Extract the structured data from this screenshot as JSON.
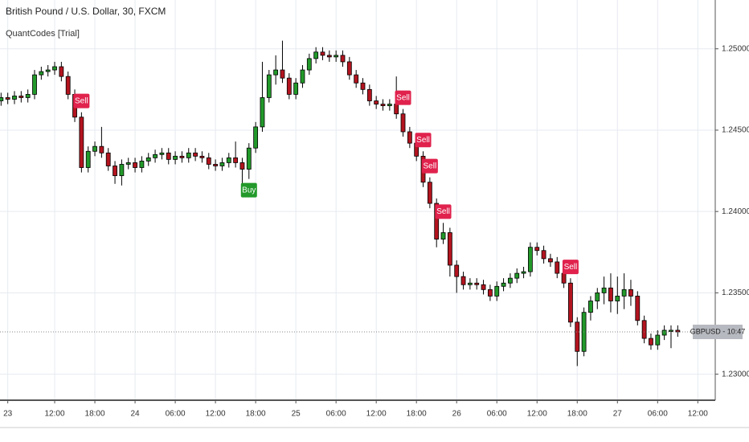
{
  "chart_data": {
    "type": "candlestick",
    "title": "British Pound / U.S. Dollar, 30, FXCM",
    "subtitle": "QuantCodes [Trial]",
    "x": [
      4,
      5,
      6,
      7,
      8,
      9,
      10,
      11,
      12,
      13,
      14,
      15,
      16,
      17,
      18,
      19,
      20,
      21,
      22,
      23,
      24,
      25,
      26,
      27,
      28,
      29,
      30,
      31,
      32,
      33,
      34,
      35,
      36,
      37,
      38,
      39,
      40,
      41,
      42,
      43,
      44,
      45,
      46,
      47,
      48,
      49,
      50,
      51,
      52,
      53,
      54,
      55,
      56,
      57,
      58,
      59,
      60,
      61,
      62,
      63,
      64,
      65,
      66,
      67,
      68,
      69,
      70,
      71,
      72,
      73,
      74,
      75,
      76,
      77,
      78,
      79,
      80,
      81,
      82,
      83,
      84,
      85,
      86,
      87,
      88,
      89,
      90,
      91,
      92,
      93,
      94,
      95,
      96,
      97,
      98,
      99,
      100,
      101,
      102,
      103,
      104,
      105
    ],
    "open": [
      1.2468,
      1.247,
      1.2469,
      1.2471,
      1.247,
      1.2472,
      1.2484,
      1.2486,
      1.2487,
      1.2489,
      1.2483,
      1.2472,
      1.2458,
      1.2427,
      1.2437,
      1.244,
      1.2436,
      1.2428,
      1.2422,
      1.2429,
      1.243,
      1.2427,
      1.2431,
      1.2433,
      1.2435,
      1.2436,
      1.2432,
      1.2434,
      1.2433,
      1.2436,
      1.2434,
      1.2433,
      1.2429,
      1.2428,
      1.243,
      1.2433,
      1.243,
      1.2426,
      1.2439,
      1.2452,
      1.247,
      1.2484,
      1.2487,
      1.2482,
      1.2472,
      1.2479,
      1.2487,
      1.2494,
      1.2498,
      1.2496,
      1.2495,
      1.2496,
      1.2492,
      1.2484,
      1.2479,
      1.2475,
      1.2468,
      1.2466,
      1.2465,
      1.2466,
      1.246,
      1.2449,
      1.2442,
      1.2434,
      1.2418,
      1.2405,
      1.2383,
      1.2387,
      1.2367,
      1.236,
      1.2355,
      1.2356,
      1.2355,
      1.2352,
      1.2348,
      1.2354,
      1.2356,
      1.2359,
      1.2362,
      1.2363,
      1.2378,
      1.2376,
      1.2371,
      1.2369,
      1.2362,
      1.2356,
      1.2332,
      1.2314,
      1.2338,
      1.2345,
      1.235,
      1.2353,
      1.2345,
      1.2348,
      1.2352,
      1.2348,
      1.2333,
      1.2322,
      1.2318,
      1.2324,
      1.2327,
      1.2327
    ],
    "high": [
      1.2473,
      1.2473,
      1.2474,
      1.2474,
      1.2475,
      1.2487,
      1.2489,
      1.249,
      1.2492,
      1.2492,
      1.2486,
      1.2475,
      1.2461,
      1.244,
      1.2443,
      1.2452,
      1.2439,
      1.2431,
      1.2432,
      1.2433,
      1.2433,
      1.2434,
      1.2436,
      1.2438,
      1.2439,
      1.2439,
      1.2437,
      1.2437,
      1.2439,
      1.2439,
      1.2437,
      1.2436,
      1.2432,
      1.2433,
      1.2436,
      1.2443,
      1.2433,
      1.2442,
      1.2455,
      1.2492,
      1.2487,
      1.2496,
      1.2505,
      1.2485,
      1.2482,
      1.249,
      1.2497,
      1.2501,
      1.2501,
      1.2499,
      1.2499,
      1.2499,
      1.2495,
      1.2487,
      1.2482,
      1.2478,
      1.2471,
      1.2469,
      1.2469,
      1.2483,
      1.2463,
      1.2452,
      1.2445,
      1.2437,
      1.2421,
      1.2408,
      1.2393,
      1.239,
      1.237,
      1.2363,
      1.2359,
      1.2359,
      1.2358,
      1.2355,
      1.2357,
      1.2359,
      1.2362,
      1.2365,
      1.2366,
      1.2381,
      1.2381,
      1.2379,
      1.2374,
      1.2372,
      1.2365,
      1.2359,
      1.2335,
      1.2341,
      1.2348,
      1.2353,
      1.236,
      1.2362,
      1.236,
      1.2362,
      1.2358,
      1.2351,
      1.2336,
      1.2325,
      1.2327,
      1.233,
      1.233,
      1.233
    ],
    "low": [
      1.2465,
      1.2466,
      1.2466,
      1.2467,
      1.2467,
      1.2469,
      1.2481,
      1.2483,
      1.2484,
      1.248,
      1.2469,
      1.2455,
      1.2424,
      1.2424,
      1.2434,
      1.2433,
      1.2425,
      1.2417,
      1.2416,
      1.2426,
      1.2424,
      1.2424,
      1.2428,
      1.243,
      1.2432,
      1.2429,
      1.2429,
      1.243,
      1.243,
      1.2431,
      1.243,
      1.2426,
      1.2425,
      1.2425,
      1.2427,
      1.2427,
      1.2416,
      1.242,
      1.2436,
      1.2449,
      1.2467,
      1.2478,
      1.2479,
      1.2469,
      1.2469,
      1.2476,
      1.2484,
      1.2491,
      1.2493,
      1.2492,
      1.2492,
      1.2489,
      1.2481,
      1.2476,
      1.2472,
      1.2465,
      1.2463,
      1.2462,
      1.2462,
      1.2457,
      1.2446,
      1.2439,
      1.2431,
      1.2415,
      1.2402,
      1.2378,
      1.238,
      1.236,
      1.235,
      1.2352,
      1.2352,
      1.2352,
      1.2349,
      1.2345,
      1.2345,
      1.2351,
      1.2353,
      1.2356,
      1.2359,
      1.236,
      1.2373,
      1.2368,
      1.2366,
      1.2359,
      1.2353,
      1.2329,
      1.2305,
      1.2311,
      1.2333,
      1.234,
      1.2343,
      1.2338,
      1.2337,
      1.234,
      1.2342,
      1.233,
      1.2319,
      1.2315,
      1.2315,
      1.2321,
      1.2316,
      1.2323
    ],
    "close": [
      1.247,
      1.2469,
      1.2471,
      1.247,
      1.2472,
      1.2484,
      1.2486,
      1.2487,
      1.2489,
      1.2483,
      1.2472,
      1.2458,
      1.2427,
      1.2437,
      1.244,
      1.2436,
      1.2428,
      1.2422,
      1.2429,
      1.243,
      1.2427,
      1.2431,
      1.2433,
      1.2435,
      1.2436,
      1.2432,
      1.2434,
      1.2433,
      1.2436,
      1.2434,
      1.2433,
      1.2429,
      1.2428,
      1.243,
      1.2433,
      1.243,
      1.2426,
      1.2439,
      1.2452,
      1.247,
      1.2484,
      1.2487,
      1.2482,
      1.2472,
      1.2479,
      1.2487,
      1.2494,
      1.2498,
      1.2496,
      1.2495,
      1.2496,
      1.2492,
      1.2484,
      1.2479,
      1.2475,
      1.2468,
      1.2466,
      1.2465,
      1.2466,
      1.246,
      1.2449,
      1.2442,
      1.2434,
      1.2418,
      1.2405,
      1.2383,
      1.2387,
      1.2367,
      1.236,
      1.2355,
      1.2356,
      1.2355,
      1.2352,
      1.2348,
      1.2354,
      1.2356,
      1.2359,
      1.2362,
      1.2363,
      1.2378,
      1.2376,
      1.2371,
      1.2369,
      1.2362,
      1.2356,
      1.2332,
      1.2314,
      1.2338,
      1.2345,
      1.235,
      1.2353,
      1.2345,
      1.2348,
      1.2352,
      1.2348,
      1.2333,
      1.2322,
      1.2318,
      1.2324,
      1.2327,
      1.2327,
      1.2326
    ],
    "up_color": "#22992a",
    "down_color": "#b3141f",
    "wick_color": "#000000",
    "xlim": [
      3.84,
      110.6
    ],
    "ylim": [
      1.2284,
      1.253
    ],
    "xticks": [
      {
        "value": 5,
        "label": "23"
      },
      {
        "value": 12,
        "label": "12:00"
      },
      {
        "value": 18,
        "label": "18:00"
      },
      {
        "value": 24,
        "label": "24"
      },
      {
        "value": 30,
        "label": "06:00"
      },
      {
        "value": 36,
        "label": "12:00"
      },
      {
        "value": 42,
        "label": "18:00"
      },
      {
        "value": 48,
        "label": "25"
      },
      {
        "value": 54,
        "label": "06:00"
      },
      {
        "value": 60,
        "label": "12:00"
      },
      {
        "value": 66,
        "label": "18:00"
      },
      {
        "value": 72,
        "label": "26"
      },
      {
        "value": 78,
        "label": "06:00"
      },
      {
        "value": 84,
        "label": "12:00"
      },
      {
        "value": 90,
        "label": "18:00"
      },
      {
        "value": 96,
        "label": "27"
      },
      {
        "value": 102,
        "label": "06:00"
      },
      {
        "value": 108,
        "label": "12:00"
      }
    ],
    "yticks": [
      {
        "value": 1.23,
        "label": "1.23000"
      },
      {
        "value": 1.235,
        "label": "1.23500"
      },
      {
        "value": 1.24,
        "label": "1.24000"
      },
      {
        "value": 1.245,
        "label": "1.24500"
      },
      {
        "value": 1.25,
        "label": "1.25000"
      }
    ],
    "grid": true,
    "annotations": [
      {
        "text": "Sell",
        "x": 16,
        "position": "above",
        "color": "#e0224d"
      },
      {
        "text": "Buy",
        "x": 41,
        "position": "below",
        "color": "#22992a"
      },
      {
        "text": "Sell",
        "x": 64,
        "position": "above",
        "color": "#e0224d"
      },
      {
        "text": "Sell",
        "x": 67,
        "position": "above",
        "color": "#e0224d"
      },
      {
        "text": "Sell",
        "x": 68,
        "position": "above",
        "color": "#e0224d"
      },
      {
        "text": "Sell",
        "x": 70,
        "position": "above",
        "color": "#e0224d"
      },
      {
        "text": "Sell",
        "x": 89,
        "position": "above",
        "color": "#e0224d"
      }
    ],
    "last_price": 1.2326,
    "price_label": "GBPUSD - 10:47"
  }
}
